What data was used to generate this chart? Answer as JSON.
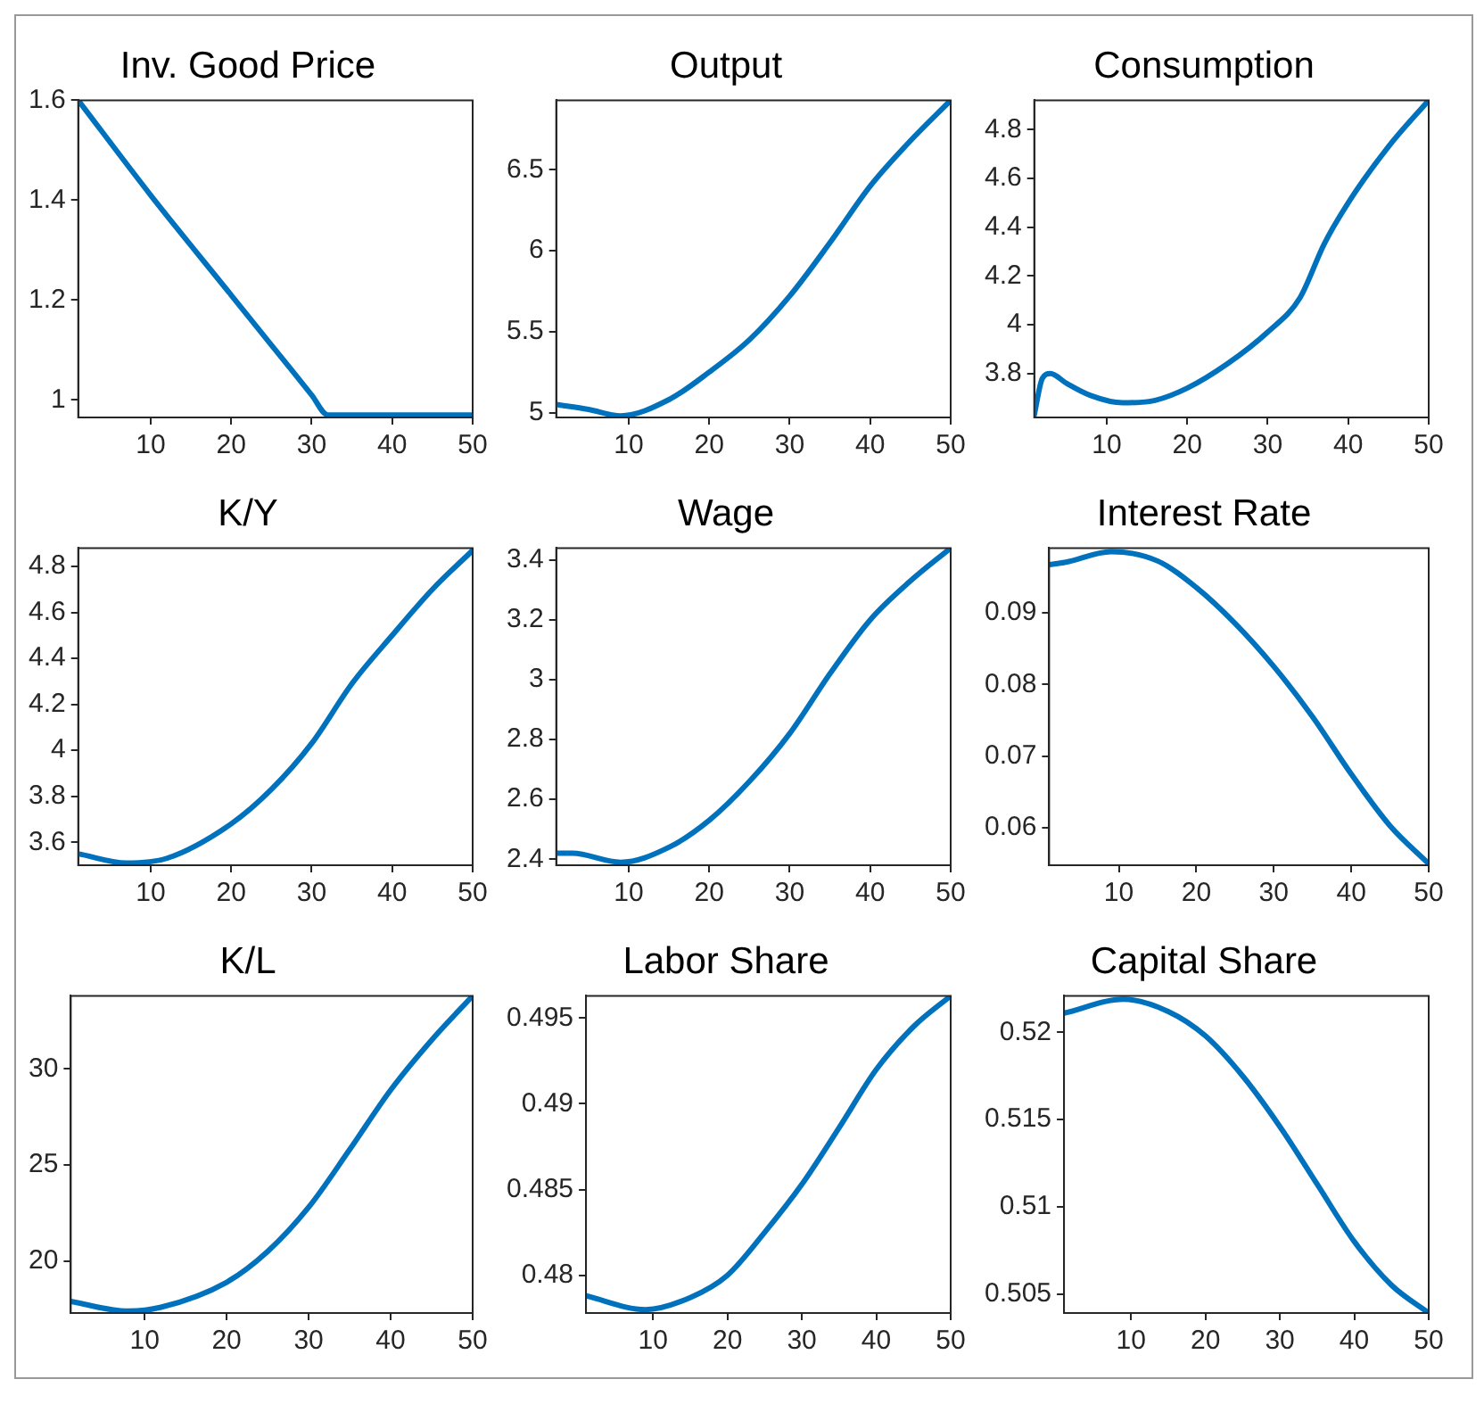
{
  "chart_data": [
    {
      "type": "line",
      "title": "Inv. Good Price",
      "color": "#0072bd",
      "x": [
        1,
        10,
        20,
        25,
        30,
        32,
        40,
        50
      ],
      "values": [
        1.6,
        1.41,
        1.21,
        1.11,
        1.01,
        0.97,
        0.97,
        0.97
      ],
      "xlim": [
        1,
        50
      ],
      "xticks": [
        10,
        20,
        30,
        40,
        50
      ],
      "ylim": [
        0.965,
        1.6
      ],
      "yticks": [
        1,
        1.2,
        1.4,
        1.6
      ],
      "grid": false
    },
    {
      "type": "line",
      "title": "Output",
      "color": "#0072bd",
      "x": [
        1,
        5,
        9,
        15,
        20,
        25,
        30,
        35,
        40,
        45,
        50
      ],
      "values": [
        5.05,
        5.02,
        4.98,
        5.08,
        5.25,
        5.45,
        5.72,
        6.05,
        6.4,
        6.68,
        6.93
      ],
      "xlim": [
        1,
        50
      ],
      "xticks": [
        10,
        20,
        30,
        40,
        50
      ],
      "ylim": [
        4.97,
        6.93
      ],
      "yticks": [
        5,
        5.5,
        6,
        6.5
      ],
      "grid": false
    },
    {
      "type": "line",
      "title": "Consumption",
      "color": "#0072bd",
      "x": [
        1,
        2,
        3,
        5,
        8,
        12,
        16,
        20,
        25,
        30,
        34,
        37,
        40,
        45,
        50
      ],
      "values": [
        3.63,
        3.78,
        3.8,
        3.76,
        3.71,
        3.68,
        3.69,
        3.74,
        3.84,
        3.97,
        4.11,
        4.33,
        4.5,
        4.73,
        4.92
      ],
      "xlim": [
        1,
        50
      ],
      "xticks": [
        10,
        20,
        30,
        40,
        50
      ],
      "ylim": [
        3.62,
        4.92
      ],
      "yticks": [
        3.8,
        4,
        4.2,
        4.4,
        4.6,
        4.8
      ],
      "grid": false
    },
    {
      "type": "line",
      "title": "K/Y",
      "color": "#0072bd",
      "x": [
        1,
        7,
        12,
        20,
        25,
        30,
        35,
        40,
        45,
        50
      ],
      "values": [
        3.55,
        3.51,
        3.53,
        3.68,
        3.83,
        4.03,
        4.29,
        4.5,
        4.7,
        4.87
      ],
      "xlim": [
        1,
        50
      ],
      "xticks": [
        10,
        20,
        30,
        40,
        50
      ],
      "ylim": [
        3.5,
        4.88
      ],
      "yticks": [
        3.6,
        3.8,
        4,
        4.2,
        4.4,
        4.6,
        4.8
      ],
      "grid": false
    },
    {
      "type": "line",
      "title": "Wage",
      "color": "#0072bd",
      "x": [
        1,
        3,
        9,
        15,
        20,
        25,
        30,
        35,
        40,
        45,
        50
      ],
      "values": [
        2.42,
        2.42,
        2.39,
        2.44,
        2.53,
        2.66,
        2.82,
        3.02,
        3.2,
        3.33,
        3.44
      ],
      "xlim": [
        1,
        50
      ],
      "xticks": [
        10,
        20,
        30,
        40,
        50
      ],
      "ylim": [
        2.38,
        3.44
      ],
      "yticks": [
        2.4,
        2.6,
        2.8,
        3,
        3.2,
        3.4
      ],
      "grid": false
    },
    {
      "type": "line",
      "title": "Interest Rate",
      "color": "#0072bd",
      "x": [
        1,
        3,
        9,
        15,
        20,
        25,
        30,
        35,
        40,
        45,
        50
      ],
      "values": [
        0.0967,
        0.097,
        0.0985,
        0.0972,
        0.0935,
        0.0885,
        0.0825,
        0.0755,
        0.0675,
        0.0603,
        0.055
      ],
      "xlim": [
        1,
        50
      ],
      "xticks": [
        10,
        20,
        30,
        40,
        50
      ],
      "ylim": [
        0.0548,
        0.099
      ],
      "yticks": [
        0.06,
        0.07,
        0.08,
        0.09
      ],
      "grid": false
    },
    {
      "type": "line",
      "title": "K/L",
      "color": "#0072bd",
      "x": [
        1,
        8,
        12,
        20,
        25,
        30,
        35,
        40,
        45,
        50
      ],
      "values": [
        17.9,
        17.4,
        17.6,
        18.9,
        20.5,
        22.8,
        25.8,
        28.9,
        31.5,
        33.8
      ],
      "xlim": [
        1,
        50
      ],
      "xticks": [
        10,
        20,
        30,
        40,
        50
      ],
      "ylim": [
        17.3,
        33.8
      ],
      "yticks": [
        20,
        25,
        30
      ],
      "grid": false
    },
    {
      "type": "line",
      "title": "Labor Share",
      "color": "#0072bd",
      "x": [
        1,
        9,
        15,
        20,
        25,
        30,
        35,
        40,
        45,
        50
      ],
      "values": [
        0.4788,
        0.478,
        0.4787,
        0.48,
        0.4825,
        0.4853,
        0.4886,
        0.492,
        0.4945,
        0.4963
      ],
      "xlim": [
        1,
        50
      ],
      "xticks": [
        10,
        20,
        30,
        40,
        50
      ],
      "ylim": [
        0.4778,
        0.4963
      ],
      "yticks": [
        0.48,
        0.485,
        0.49,
        0.495
      ],
      "grid": false
    },
    {
      "type": "line",
      "title": "Capital Share",
      "color": "#0072bd",
      "x": [
        1,
        9,
        15,
        20,
        25,
        30,
        35,
        40,
        45,
        50
      ],
      "values": [
        0.5211,
        0.5219,
        0.5212,
        0.5198,
        0.5175,
        0.5146,
        0.5113,
        0.508,
        0.5055,
        0.5039
      ],
      "xlim": [
        1,
        50
      ],
      "xticks": [
        10,
        20,
        30,
        40,
        50
      ],
      "ylim": [
        0.5039,
        0.5221
      ],
      "yticks": [
        0.505,
        0.51,
        0.515,
        0.52
      ],
      "grid": false
    }
  ]
}
